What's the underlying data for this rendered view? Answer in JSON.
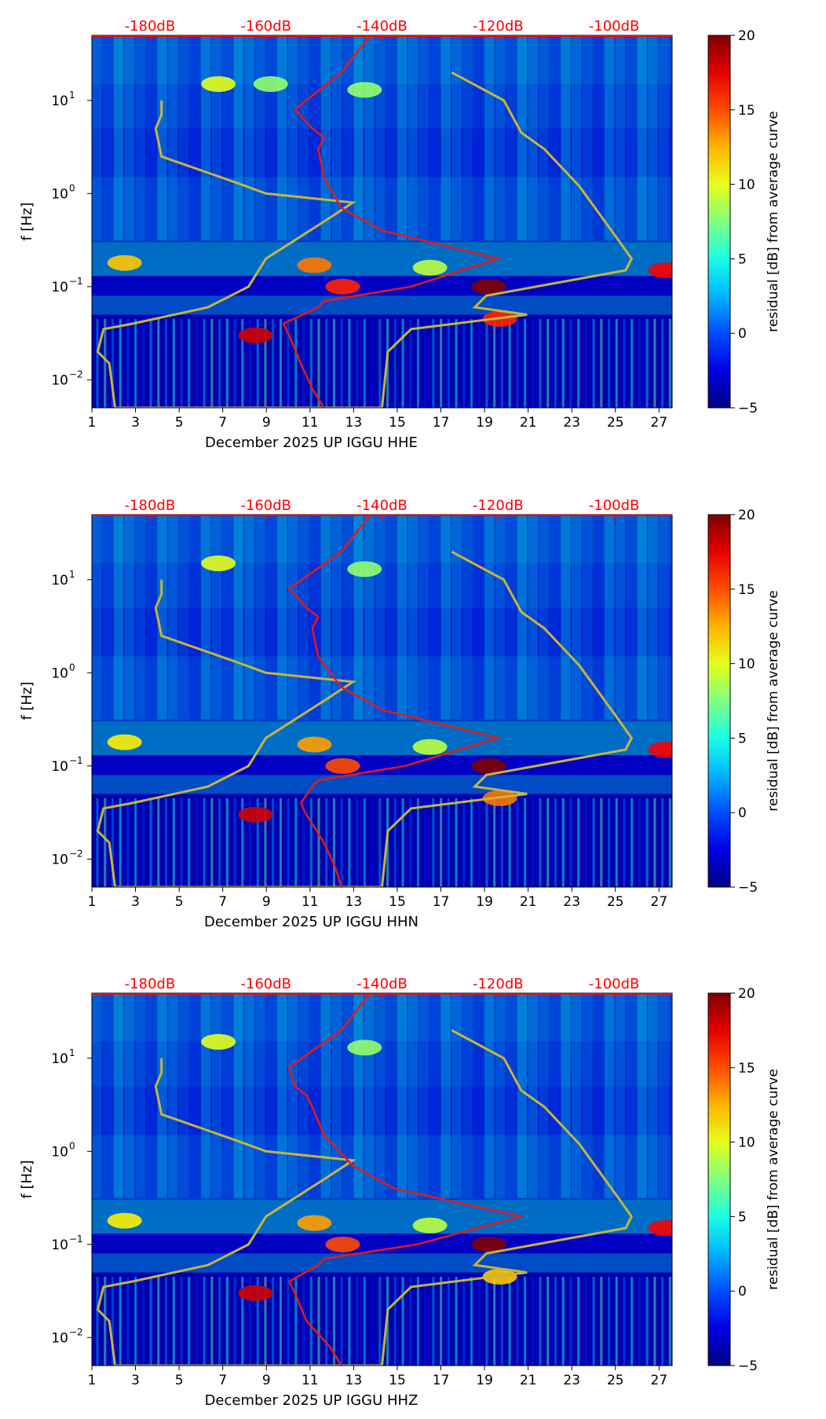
{
  "colors": {
    "db_scale": "#ff0000",
    "psd_curve": "#e41a1c",
    "noise_model": "#c8b43c",
    "background": "#00007f"
  },
  "chart_data": [
    {
      "type": "heatmap",
      "title": "",
      "xlabel": "December 2025 UP IGGU  HHE",
      "ylabel": "f [Hz]",
      "colorbar_label": "residual [dB] from average curve",
      "x_ticks": [
        "1",
        "3",
        "5",
        "7",
        "9",
        "11",
        "13",
        "15",
        "17",
        "19",
        "21",
        "23",
        "25",
        "27"
      ],
      "xlim": [
        1,
        27.6
      ],
      "y_ticks": [
        {
          "value": 0.01,
          "base": "10",
          "exp": "−2"
        },
        {
          "value": 0.1,
          "base": "10",
          "exp": "−1"
        },
        {
          "value": 1,
          "base": "10",
          "exp": "0"
        },
        {
          "value": 10,
          "base": "10",
          "exp": "1"
        }
      ],
      "ylim": [
        0.005,
        50
      ],
      "yscale": "log",
      "colorbar_ticks": [
        "−5",
        "0",
        "5",
        "10",
        "15",
        "20"
      ],
      "clim": [
        -5,
        20
      ],
      "top_db_ticks": [
        "-180dB",
        "-160dB",
        "-140dB",
        "-120dB",
        "-100dB"
      ],
      "db_range": [
        -190,
        -90
      ],
      "psd_curve": {
        "db": [
          -142,
          -147,
          -155,
          -152,
          -150,
          -151,
          -150,
          -147,
          -140,
          -120,
          -135,
          -150,
          -151,
          -157,
          -156,
          -154,
          -152,
          -150
        ],
        "f": [
          50,
          20,
          8,
          5,
          4,
          3,
          1.5,
          0.7,
          0.4,
          0.2,
          0.1,
          0.07,
          0.06,
          0.04,
          0.03,
          0.015,
          0.008,
          0.005
        ]
      },
      "noise_model": {
        "db": [
          -178,
          -178,
          -179,
          -178,
          -165,
          -160,
          -145,
          -150,
          -160,
          -163,
          -170,
          -183,
          -188,
          -189,
          -187,
          -186,
          -140,
          -139,
          -135,
          -115,
          -124,
          -122,
          -98,
          -97,
          -99,
          -106,
          -112,
          -116,
          -119,
          -128
        ],
        "f": [
          10,
          7,
          5,
          2.5,
          1.3,
          1,
          0.8,
          0.5,
          0.2,
          0.1,
          0.06,
          0.04,
          0.035,
          0.02,
          0.015,
          0.005,
          0.005,
          0.02,
          0.035,
          0.05,
          0.06,
          0.08,
          0.15,
          0.2,
          0.3,
          1.2,
          3,
          4.5,
          10,
          20
        ]
      },
      "hot_spots": [
        {
          "x": 2.5,
          "f": 0.18,
          "value": 12
        },
        {
          "x": 6.8,
          "f": 15,
          "value": 10
        },
        {
          "x": 9.2,
          "f": 15,
          "value": 8
        },
        {
          "x": 11.2,
          "f": 0.17,
          "value": 14
        },
        {
          "x": 12.5,
          "f": 0.1,
          "value": 16
        },
        {
          "x": 13.5,
          "f": 13,
          "value": 8
        },
        {
          "x": 19.2,
          "f": 0.1,
          "value": 20
        },
        {
          "x": 19.7,
          "f": 0.045,
          "value": 16
        },
        {
          "x": 16.5,
          "f": 0.16,
          "value": 9
        },
        {
          "x": 27.3,
          "f": 0.15,
          "value": 17
        },
        {
          "x": 8.5,
          "f": 0.03,
          "value": 18
        }
      ]
    },
    {
      "type": "heatmap",
      "title": "",
      "xlabel": "December 2025 UP IGGU  HHN",
      "ylabel": "f [Hz]",
      "colorbar_label": "residual [dB] from average curve",
      "x_ticks": [
        "1",
        "3",
        "5",
        "7",
        "9",
        "11",
        "13",
        "15",
        "17",
        "19",
        "21",
        "23",
        "25",
        "27"
      ],
      "xlim": [
        1,
        27.6
      ],
      "y_ticks": [
        {
          "value": 0.01,
          "base": "10",
          "exp": "−2"
        },
        {
          "value": 0.1,
          "base": "10",
          "exp": "−1"
        },
        {
          "value": 1,
          "base": "10",
          "exp": "0"
        },
        {
          "value": 10,
          "base": "10",
          "exp": "1"
        }
      ],
      "ylim": [
        0.005,
        50
      ],
      "yscale": "log",
      "colorbar_ticks": [
        "−5",
        "0",
        "5",
        "10",
        "15",
        "20"
      ],
      "clim": [
        -5,
        20
      ],
      "top_db_ticks": [
        "-180dB",
        "-160dB",
        "-140dB",
        "-120dB",
        "-100dB"
      ],
      "db_range": [
        -190,
        -90
      ],
      "psd_curve": {
        "db": [
          -142,
          -147,
          -156,
          -153,
          -151,
          -152,
          -151,
          -147,
          -140,
          -120,
          -136,
          -151,
          -152,
          -154,
          -153,
          -150,
          -148,
          -147
        ],
        "f": [
          50,
          20,
          8,
          5,
          4,
          3,
          1.5,
          0.7,
          0.4,
          0.2,
          0.1,
          0.07,
          0.06,
          0.04,
          0.03,
          0.015,
          0.008,
          0.005
        ]
      },
      "noise_model": {
        "db": [
          -178,
          -178,
          -179,
          -178,
          -165,
          -160,
          -145,
          -150,
          -160,
          -163,
          -170,
          -183,
          -188,
          -189,
          -187,
          -186,
          -140,
          -139,
          -135,
          -115,
          -124,
          -122,
          -98,
          -97,
          -99,
          -106,
          -112,
          -116,
          -119,
          -128
        ],
        "f": [
          10,
          7,
          5,
          2.5,
          1.3,
          1,
          0.8,
          0.5,
          0.2,
          0.1,
          0.06,
          0.04,
          0.035,
          0.02,
          0.015,
          0.005,
          0.005,
          0.02,
          0.035,
          0.05,
          0.06,
          0.08,
          0.15,
          0.2,
          0.3,
          1.2,
          3,
          4.5,
          10,
          20
        ]
      },
      "hot_spots": [
        {
          "x": 2.5,
          "f": 0.18,
          "value": 11
        },
        {
          "x": 6.8,
          "f": 15,
          "value": 10
        },
        {
          "x": 11.2,
          "f": 0.17,
          "value": 13
        },
        {
          "x": 12.5,
          "f": 0.1,
          "value": 15
        },
        {
          "x": 13.5,
          "f": 13,
          "value": 8
        },
        {
          "x": 19.2,
          "f": 0.1,
          "value": 20
        },
        {
          "x": 19.7,
          "f": 0.045,
          "value": 14
        },
        {
          "x": 16.5,
          "f": 0.16,
          "value": 9
        },
        {
          "x": 27.3,
          "f": 0.15,
          "value": 17
        },
        {
          "x": 8.5,
          "f": 0.03,
          "value": 18
        }
      ]
    },
    {
      "type": "heatmap",
      "title": "",
      "xlabel": "December 2025 UP IGGU  HHZ",
      "ylabel": "f [Hz]",
      "colorbar_label": "residual [dB] from average curve",
      "x_ticks": [
        "1",
        "3",
        "5",
        "7",
        "9",
        "11",
        "13",
        "15",
        "17",
        "19",
        "21",
        "23",
        "25",
        "27"
      ],
      "xlim": [
        1,
        27.6
      ],
      "y_ticks": [
        {
          "value": 0.01,
          "base": "10",
          "exp": "−2"
        },
        {
          "value": 0.1,
          "base": "10",
          "exp": "−1"
        },
        {
          "value": 1,
          "base": "10",
          "exp": "0"
        },
        {
          "value": 10,
          "base": "10",
          "exp": "1"
        }
      ],
      "ylim": [
        0.005,
        50
      ],
      "yscale": "log",
      "colorbar_ticks": [
        "−5",
        "0",
        "5",
        "10",
        "15",
        "20"
      ],
      "clim": [
        -5,
        20
      ],
      "top_db_ticks": [
        "-180dB",
        "-160dB",
        "-140dB",
        "-120dB",
        "-100dB"
      ],
      "db_range": [
        -190,
        -90
      ],
      "psd_curve": {
        "db": [
          -142,
          -147,
          -156,
          -155,
          -153,
          -152,
          -150,
          -145,
          -138,
          -116,
          -134,
          -150,
          -151,
          -156,
          -155,
          -153,
          -149,
          -147
        ],
        "f": [
          50,
          20,
          8,
          5,
          4,
          3,
          1.5,
          0.7,
          0.4,
          0.2,
          0.1,
          0.07,
          0.06,
          0.04,
          0.03,
          0.015,
          0.008,
          0.005
        ]
      },
      "noise_model": {
        "db": [
          -178,
          -178,
          -179,
          -178,
          -165,
          -160,
          -145,
          -150,
          -160,
          -163,
          -170,
          -183,
          -188,
          -189,
          -187,
          -186,
          -140,
          -139,
          -135,
          -115,
          -124,
          -122,
          -98,
          -97,
          -99,
          -106,
          -112,
          -116,
          -119,
          -128
        ],
        "f": [
          10,
          7,
          5,
          2.5,
          1.3,
          1,
          0.8,
          0.5,
          0.2,
          0.1,
          0.06,
          0.04,
          0.035,
          0.02,
          0.015,
          0.005,
          0.005,
          0.02,
          0.035,
          0.05,
          0.06,
          0.08,
          0.15,
          0.2,
          0.3,
          1.2,
          3,
          4.5,
          10,
          20
        ]
      },
      "hot_spots": [
        {
          "x": 2.5,
          "f": 0.18,
          "value": 11
        },
        {
          "x": 6.8,
          "f": 15,
          "value": 10
        },
        {
          "x": 11.2,
          "f": 0.17,
          "value": 13
        },
        {
          "x": 12.5,
          "f": 0.1,
          "value": 15
        },
        {
          "x": 13.5,
          "f": 13,
          "value": 8
        },
        {
          "x": 19.2,
          "f": 0.1,
          "value": 20
        },
        {
          "x": 19.7,
          "f": 0.045,
          "value": 12
        },
        {
          "x": 16.5,
          "f": 0.16,
          "value": 9
        },
        {
          "x": 27.3,
          "f": 0.15,
          "value": 17
        },
        {
          "x": 8.5,
          "f": 0.03,
          "value": 18
        }
      ]
    }
  ]
}
